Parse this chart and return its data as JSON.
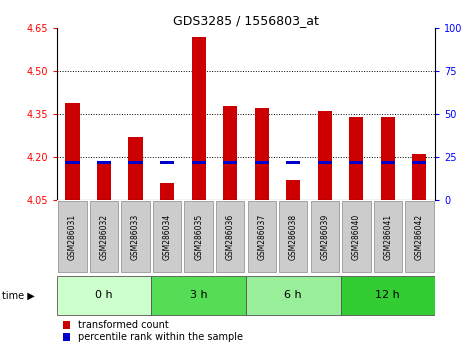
{
  "title": "GDS3285 / 1556803_at",
  "samples": [
    "GSM286031",
    "GSM286032",
    "GSM286033",
    "GSM286034",
    "GSM286035",
    "GSM286036",
    "GSM286037",
    "GSM286038",
    "GSM286039",
    "GSM286040",
    "GSM286041",
    "GSM286042"
  ],
  "transformed_count": [
    4.39,
    4.18,
    4.27,
    4.11,
    4.62,
    4.38,
    4.37,
    4.12,
    4.36,
    4.34,
    4.34,
    4.21
  ],
  "bar_base": 4.05,
  "percentile_rank": [
    18,
    14,
    18,
    17,
    18,
    18,
    18,
    17,
    18,
    17,
    17,
    17
  ],
  "ylim": [
    4.05,
    4.65
  ],
  "right_ylim": [
    0,
    100
  ],
  "right_yticks": [
    0,
    25,
    50,
    75,
    100
  ],
  "left_yticks": [
    4.05,
    4.2,
    4.35,
    4.5,
    4.65
  ],
  "grid_yticks": [
    4.2,
    4.35,
    4.5
  ],
  "groups": [
    {
      "label": "0 h",
      "start": 0,
      "end": 3,
      "color": "#ccffcc"
    },
    {
      "label": "3 h",
      "start": 3,
      "end": 6,
      "color": "#55dd55"
    },
    {
      "label": "6 h",
      "start": 6,
      "end": 9,
      "color": "#99ee99"
    },
    {
      "label": "12 h",
      "start": 9,
      "end": 12,
      "color": "#33cc33"
    }
  ],
  "bar_color_red": "#cc0000",
  "bar_color_blue": "#0000cc",
  "bar_width": 0.45,
  "label_bg_color": "#cccccc",
  "legend_red": "transformed count",
  "legend_blue": "percentile rank within the sample",
  "time_label": "time",
  "blue_bar_value": 4.175,
  "blue_bar_height": 0.012
}
